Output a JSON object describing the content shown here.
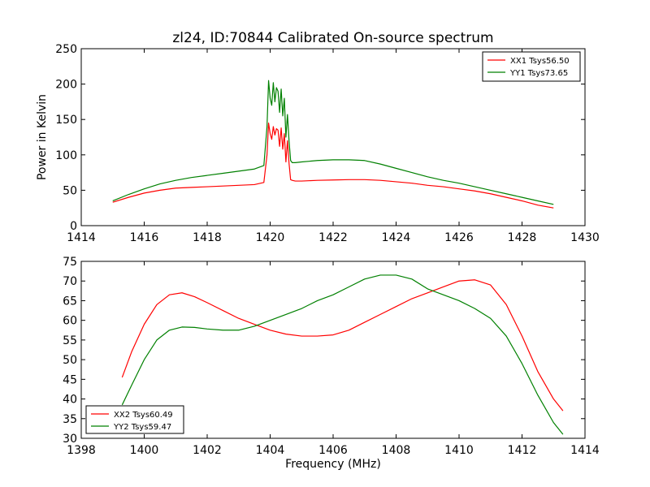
{
  "chart_data": [
    {
      "type": "line",
      "title": "zl24, ID:70844 Calibrated On-source spectrum",
      "xlabel": "",
      "ylabel": "Power in Kelvin",
      "xlim": [
        1414,
        1430
      ],
      "ylim": [
        0,
        250
      ],
      "xticks": [
        1414,
        1416,
        1418,
        1420,
        1422,
        1424,
        1426,
        1428,
        1430
      ],
      "yticks": [
        0,
        50,
        100,
        150,
        200,
        250
      ],
      "grid": false,
      "legend_position": "top-right",
      "series": [
        {
          "name": "XX1 Tsys56.50",
          "color": "#ff0000",
          "x": [
            1415.0,
            1415.5,
            1416.0,
            1416.5,
            1417.0,
            1417.5,
            1418.0,
            1418.5,
            1419.0,
            1419.5,
            1419.8,
            1419.9,
            1419.95,
            1420.0,
            1420.05,
            1420.1,
            1420.15,
            1420.2,
            1420.25,
            1420.3,
            1420.35,
            1420.4,
            1420.45,
            1420.5,
            1420.55,
            1420.6,
            1420.65,
            1420.7,
            1420.8,
            1421.0,
            1421.5,
            1422.0,
            1422.5,
            1423.0,
            1423.5,
            1424.0,
            1424.5,
            1425.0,
            1425.5,
            1426.0,
            1426.5,
            1427.0,
            1427.5,
            1428.0,
            1428.5,
            1429.0
          ],
          "y": [
            33,
            40,
            46,
            50,
            53,
            54,
            55,
            56,
            57,
            58,
            61,
            100,
            145,
            130,
            122,
            140,
            128,
            137,
            135,
            112,
            138,
            108,
            130,
            90,
            120,
            88,
            65,
            64,
            63,
            63,
            64,
            64.5,
            65,
            65,
            64,
            62,
            60,
            57,
            55,
            52,
            49,
            45,
            40,
            35,
            29,
            25
          ]
        },
        {
          "name": "YY1 Tsys73.65",
          "color": "#008000",
          "x": [
            1415.0,
            1415.5,
            1416.0,
            1416.5,
            1417.0,
            1417.5,
            1418.0,
            1418.5,
            1419.0,
            1419.5,
            1419.8,
            1419.9,
            1419.95,
            1420.0,
            1420.05,
            1420.1,
            1420.15,
            1420.2,
            1420.25,
            1420.3,
            1420.35,
            1420.4,
            1420.45,
            1420.5,
            1420.55,
            1420.6,
            1420.65,
            1420.7,
            1420.8,
            1421.0,
            1421.5,
            1422.0,
            1422.5,
            1423.0,
            1423.5,
            1424.0,
            1424.5,
            1425.0,
            1425.5,
            1426.0,
            1426.5,
            1427.0,
            1427.5,
            1428.0,
            1428.5,
            1429.0
          ],
          "y": [
            35,
            44,
            52,
            59,
            64,
            68,
            71,
            74,
            77,
            80,
            85,
            140,
            205,
            180,
            170,
            202,
            175,
            195,
            190,
            160,
            193,
            155,
            180,
            125,
            157,
            120,
            92,
            89,
            89,
            90,
            92,
            93,
            93,
            92,
            87,
            81,
            75,
            69,
            64,
            60,
            55,
            50,
            45,
            40,
            35,
            30
          ]
        }
      ]
    },
    {
      "type": "line",
      "title": "",
      "xlabel": "Frequency (MHz)",
      "ylabel": "",
      "xlim": [
        1398,
        1414
      ],
      "ylim": [
        30,
        75
      ],
      "xticks": [
        1398,
        1400,
        1402,
        1404,
        1406,
        1408,
        1410,
        1412,
        1414
      ],
      "yticks": [
        30,
        35,
        40,
        45,
        50,
        55,
        60,
        65,
        70,
        75
      ],
      "grid": false,
      "legend_position": "bottom-left",
      "series": [
        {
          "name": "XX2 Tsys60.49",
          "color": "#ff0000",
          "x": [
            1399.3,
            1399.6,
            1400.0,
            1400.4,
            1400.8,
            1401.2,
            1401.6,
            1402.0,
            1402.5,
            1403.0,
            1403.5,
            1404.0,
            1404.5,
            1405.0,
            1405.5,
            1406.0,
            1406.5,
            1407.0,
            1407.5,
            1408.0,
            1408.5,
            1409.0,
            1409.5,
            1410.0,
            1410.5,
            1411.0,
            1411.5,
            1412.0,
            1412.5,
            1413.0,
            1413.3
          ],
          "y": [
            45.5,
            52,
            59,
            64,
            66.5,
            67,
            66,
            64.5,
            62.5,
            60.5,
            59,
            57.5,
            56.5,
            56,
            56,
            56.3,
            57.5,
            59.5,
            61.5,
            63.5,
            65.5,
            67,
            68.5,
            70,
            70.3,
            69,
            64,
            56,
            47,
            40,
            37
          ]
        },
        {
          "name": "YY2 Tsys59.47",
          "color": "#008000",
          "x": [
            1399.3,
            1399.6,
            1400.0,
            1400.4,
            1400.8,
            1401.2,
            1401.6,
            1402.0,
            1402.5,
            1403.0,
            1403.5,
            1404.0,
            1404.5,
            1405.0,
            1405.5,
            1406.0,
            1406.5,
            1407.0,
            1407.5,
            1408.0,
            1408.5,
            1409.0,
            1409.5,
            1410.0,
            1410.5,
            1411.0,
            1411.5,
            1412.0,
            1412.5,
            1413.0,
            1413.3
          ],
          "y": [
            38.5,
            43.5,
            50,
            55,
            57.5,
            58.3,
            58.2,
            57.8,
            57.5,
            57.5,
            58.5,
            60,
            61.5,
            63,
            65,
            66.5,
            68.5,
            70.5,
            71.5,
            71.5,
            70.5,
            68,
            66.5,
            65,
            63,
            60.5,
            56,
            49,
            41,
            34,
            31
          ]
        }
      ]
    }
  ]
}
